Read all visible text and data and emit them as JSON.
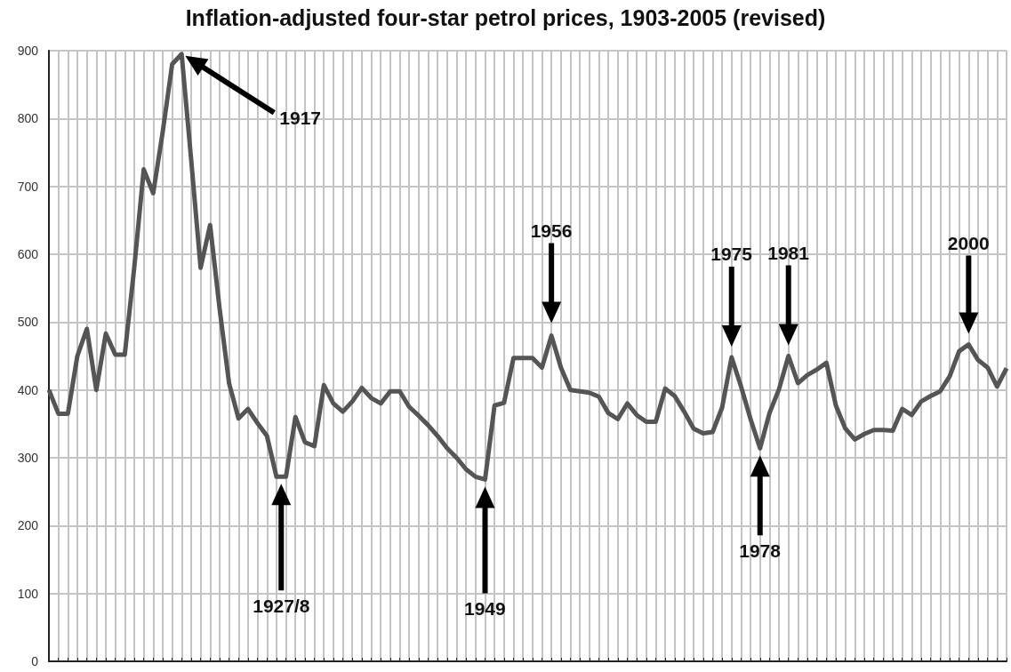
{
  "chart_data": {
    "type": "line",
    "title": "Inflation-adjusted four-star petrol prices, 1903-2005 (revised)",
    "categories": [
      null,
      null,
      null,
      null,
      null,
      null,
      null,
      null,
      null,
      null,
      null,
      null,
      null,
      null,
      null,
      null,
      null,
      null,
      null,
      null,
      null,
      null,
      null,
      null,
      null,
      null,
      null,
      null,
      null,
      null,
      null,
      null,
      null,
      null,
      null,
      null,
      null,
      null,
      null,
      null,
      null,
      null,
      null,
      null,
      null,
      null,
      null,
      null,
      null,
      null,
      null,
      null,
      null,
      null,
      null,
      null,
      null,
      null,
      null,
      null,
      null,
      null,
      null,
      null,
      null,
      null,
      null,
      null,
      null,
      null,
      null,
      null,
      null,
      null,
      null,
      null,
      null,
      null,
      null,
      null,
      null,
      null,
      null,
      null,
      null,
      null,
      null,
      null,
      null,
      null,
      null,
      null,
      null,
      null,
      null,
      null,
      null,
      null,
      null,
      null,
      null,
      null
    ],
    "values": [
      400,
      365,
      365,
      450,
      490,
      400,
      483,
      452,
      452,
      580,
      725,
      690,
      780,
      880,
      895,
      740,
      580,
      643,
      520,
      410,
      358,
      372,
      351,
      332,
      272,
      272,
      360,
      323,
      317,
      407,
      380,
      368,
      383,
      403,
      388,
      380,
      398,
      398,
      375,
      362,
      348,
      332,
      314,
      300,
      283,
      272,
      268,
      377,
      381,
      447,
      447,
      447,
      433,
      480,
      433,
      400,
      398,
      396,
      390,
      366,
      357,
      380,
      363,
      353,
      353,
      402,
      391,
      368,
      343,
      336,
      338,
      374,
      448,
      405,
      357,
      314,
      366,
      401,
      450,
      410,
      422,
      430,
      440,
      377,
      343,
      327,
      335,
      341,
      341,
      340,
      372,
      363,
      383,
      391,
      398,
      420,
      457,
      467,
      444,
      433,
      405,
      432
    ],
    "color": "#555555",
    "ylim": [
      0,
      900
    ],
    "yticks": [
      0,
      100,
      200,
      300,
      400,
      500,
      600,
      700,
      800,
      900
    ],
    "grid": true,
    "tick_labels": "y",
    "annotations": [
      "1917",
      "1927/8",
      "1949",
      "1956",
      "1975",
      "1978",
      "1981",
      "2000"
    ]
  }
}
